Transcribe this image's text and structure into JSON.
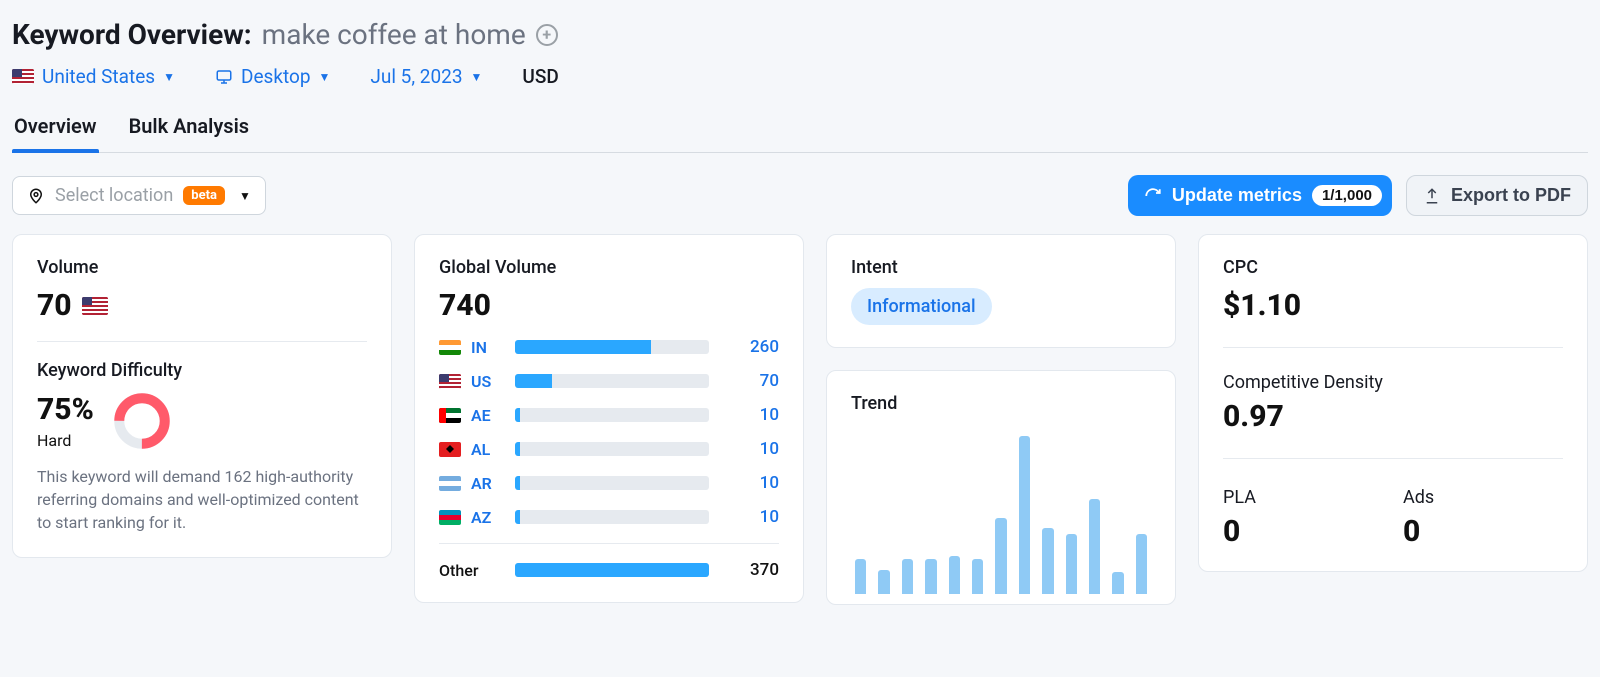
{
  "colors": {
    "link": "#1a73e8",
    "primary_btn": "#1a8cff",
    "bar_fill": "#2aa7ff",
    "bar_bg": "#e6eaef",
    "trend_bar": "#8fcaf5",
    "intent_bg": "#d8ecff",
    "kd_ring": "#ff5a6a",
    "kd_ring_bg": "#e6eaef",
    "text_muted": "#6b7280",
    "card_border": "#e3e8ee",
    "page_bg": "#f5f7fa",
    "beta_bg": "#ff7a00"
  },
  "header": {
    "title_prefix": "Keyword Overview:",
    "keyword": "make coffee at home",
    "filters": {
      "country_label": "United States",
      "device_label": "Desktop",
      "date_label": "Jul 5, 2023",
      "currency": "USD"
    }
  },
  "tabs": [
    "Overview",
    "Bulk Analysis"
  ],
  "active_tab_index": 0,
  "toolbar": {
    "select_location_placeholder": "Select location",
    "beta_label": "beta",
    "update_label": "Update metrics",
    "update_count": "1/1,000",
    "export_label": "Export to PDF"
  },
  "volume_card": {
    "title": "Volume",
    "value": "70",
    "kd_title": "Keyword Difficulty",
    "kd_value": "75%",
    "kd_pct_numeric": 75,
    "kd_label": "Hard",
    "kd_desc": "This keyword will demand 162 high-authority referring domains and well-optimized content to start ranking for it."
  },
  "global_volume_card": {
    "title": "Global Volume",
    "value": "740",
    "bar_max": 370,
    "rows": [
      {
        "flag": "in",
        "code": "IN",
        "value": 260
      },
      {
        "flag": "us",
        "code": "US",
        "value": 70
      },
      {
        "flag": "ae",
        "code": "AE",
        "value": 10
      },
      {
        "flag": "al",
        "code": "AL",
        "value": 10
      },
      {
        "flag": "ar",
        "code": "AR",
        "value": 10
      },
      {
        "flag": "az",
        "code": "AZ",
        "value": 10
      }
    ],
    "other_label": "Other",
    "other_value": 370
  },
  "intent_card": {
    "title": "Intent",
    "badge": "Informational"
  },
  "trend_card": {
    "title": "Trend",
    "type": "bar",
    "max": 100,
    "values": [
      22,
      15,
      22,
      22,
      24,
      22,
      48,
      100,
      42,
      38,
      60,
      14,
      38
    ]
  },
  "cpc_card": {
    "cpc_title": "CPC",
    "cpc_value": "$1.10",
    "density_title": "Competitive Density",
    "density_value": "0.97",
    "pla_title": "PLA",
    "pla_value": "0",
    "ads_title": "Ads",
    "ads_value": "0"
  }
}
